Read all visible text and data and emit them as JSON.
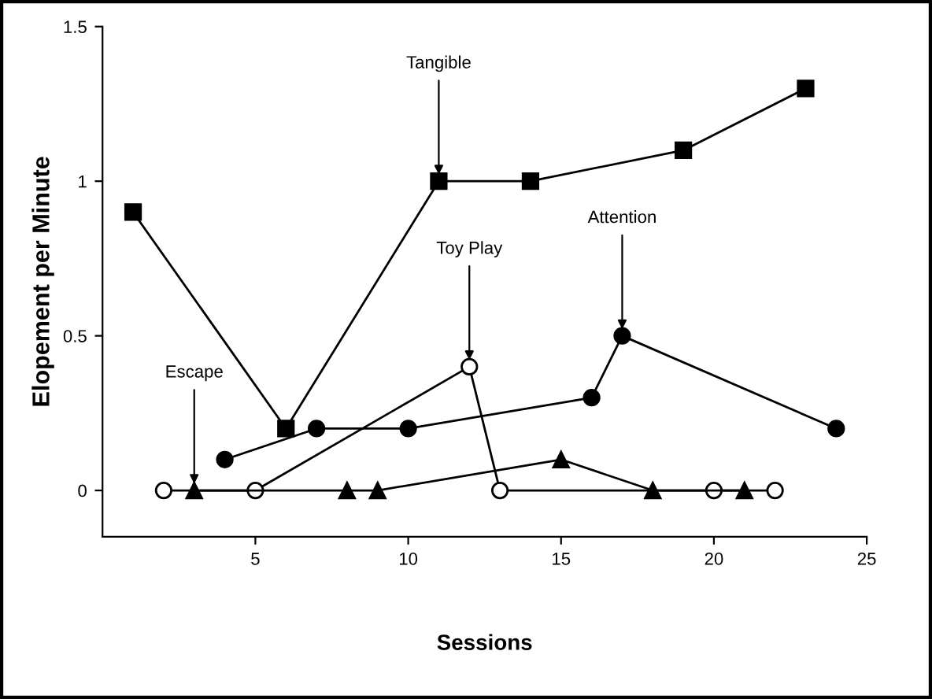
{
  "chart_data": {
    "type": "line",
    "xlabel": "Sessions",
    "ylabel": "Elopement per Minute",
    "xlim": [
      0,
      25
    ],
    "xticks": [
      5,
      10,
      15,
      20,
      25
    ],
    "ylim": [
      -0.15,
      1.5
    ],
    "yticks": [
      0,
      0.5,
      1,
      1.5
    ],
    "grid": false,
    "line_style": "solid",
    "series": [
      {
        "color": "#000000",
        "marker": "square",
        "x": [
          1,
          6,
          11,
          14,
          19,
          23
        ],
        "values": [
          0.9,
          0.2,
          1.0,
          1.0,
          1.1,
          1.3
        ]
      },
      {
        "color": "#000000",
        "marker": "circle",
        "x": [
          4,
          7,
          10,
          16,
          17,
          24
        ],
        "values": [
          0.1,
          0.2,
          0.2,
          0.3,
          0.5,
          0.2
        ]
      },
      {
        "color": "#ffffff",
        "marker": "circle",
        "x": [
          2,
          5,
          12,
          13,
          20,
          22
        ],
        "values": [
          0,
          0,
          0.4,
          0,
          0,
          0
        ]
      },
      {
        "color": "#000000",
        "marker": "triangle",
        "x": [
          3,
          8,
          9,
          15,
          18,
          21
        ],
        "values": [
          0,
          0,
          0,
          0.1,
          0,
          0
        ]
      }
    ],
    "annotations": [
      {
        "text": "Tangible",
        "x": 11,
        "y": 1.0
      },
      {
        "text": "Toy Play",
        "x": 12,
        "y": 0.4
      },
      {
        "text": "Attention",
        "x": 17,
        "y": 0.5
      },
      {
        "text": "Escape",
        "x": 3,
        "y": 0
      }
    ]
  }
}
